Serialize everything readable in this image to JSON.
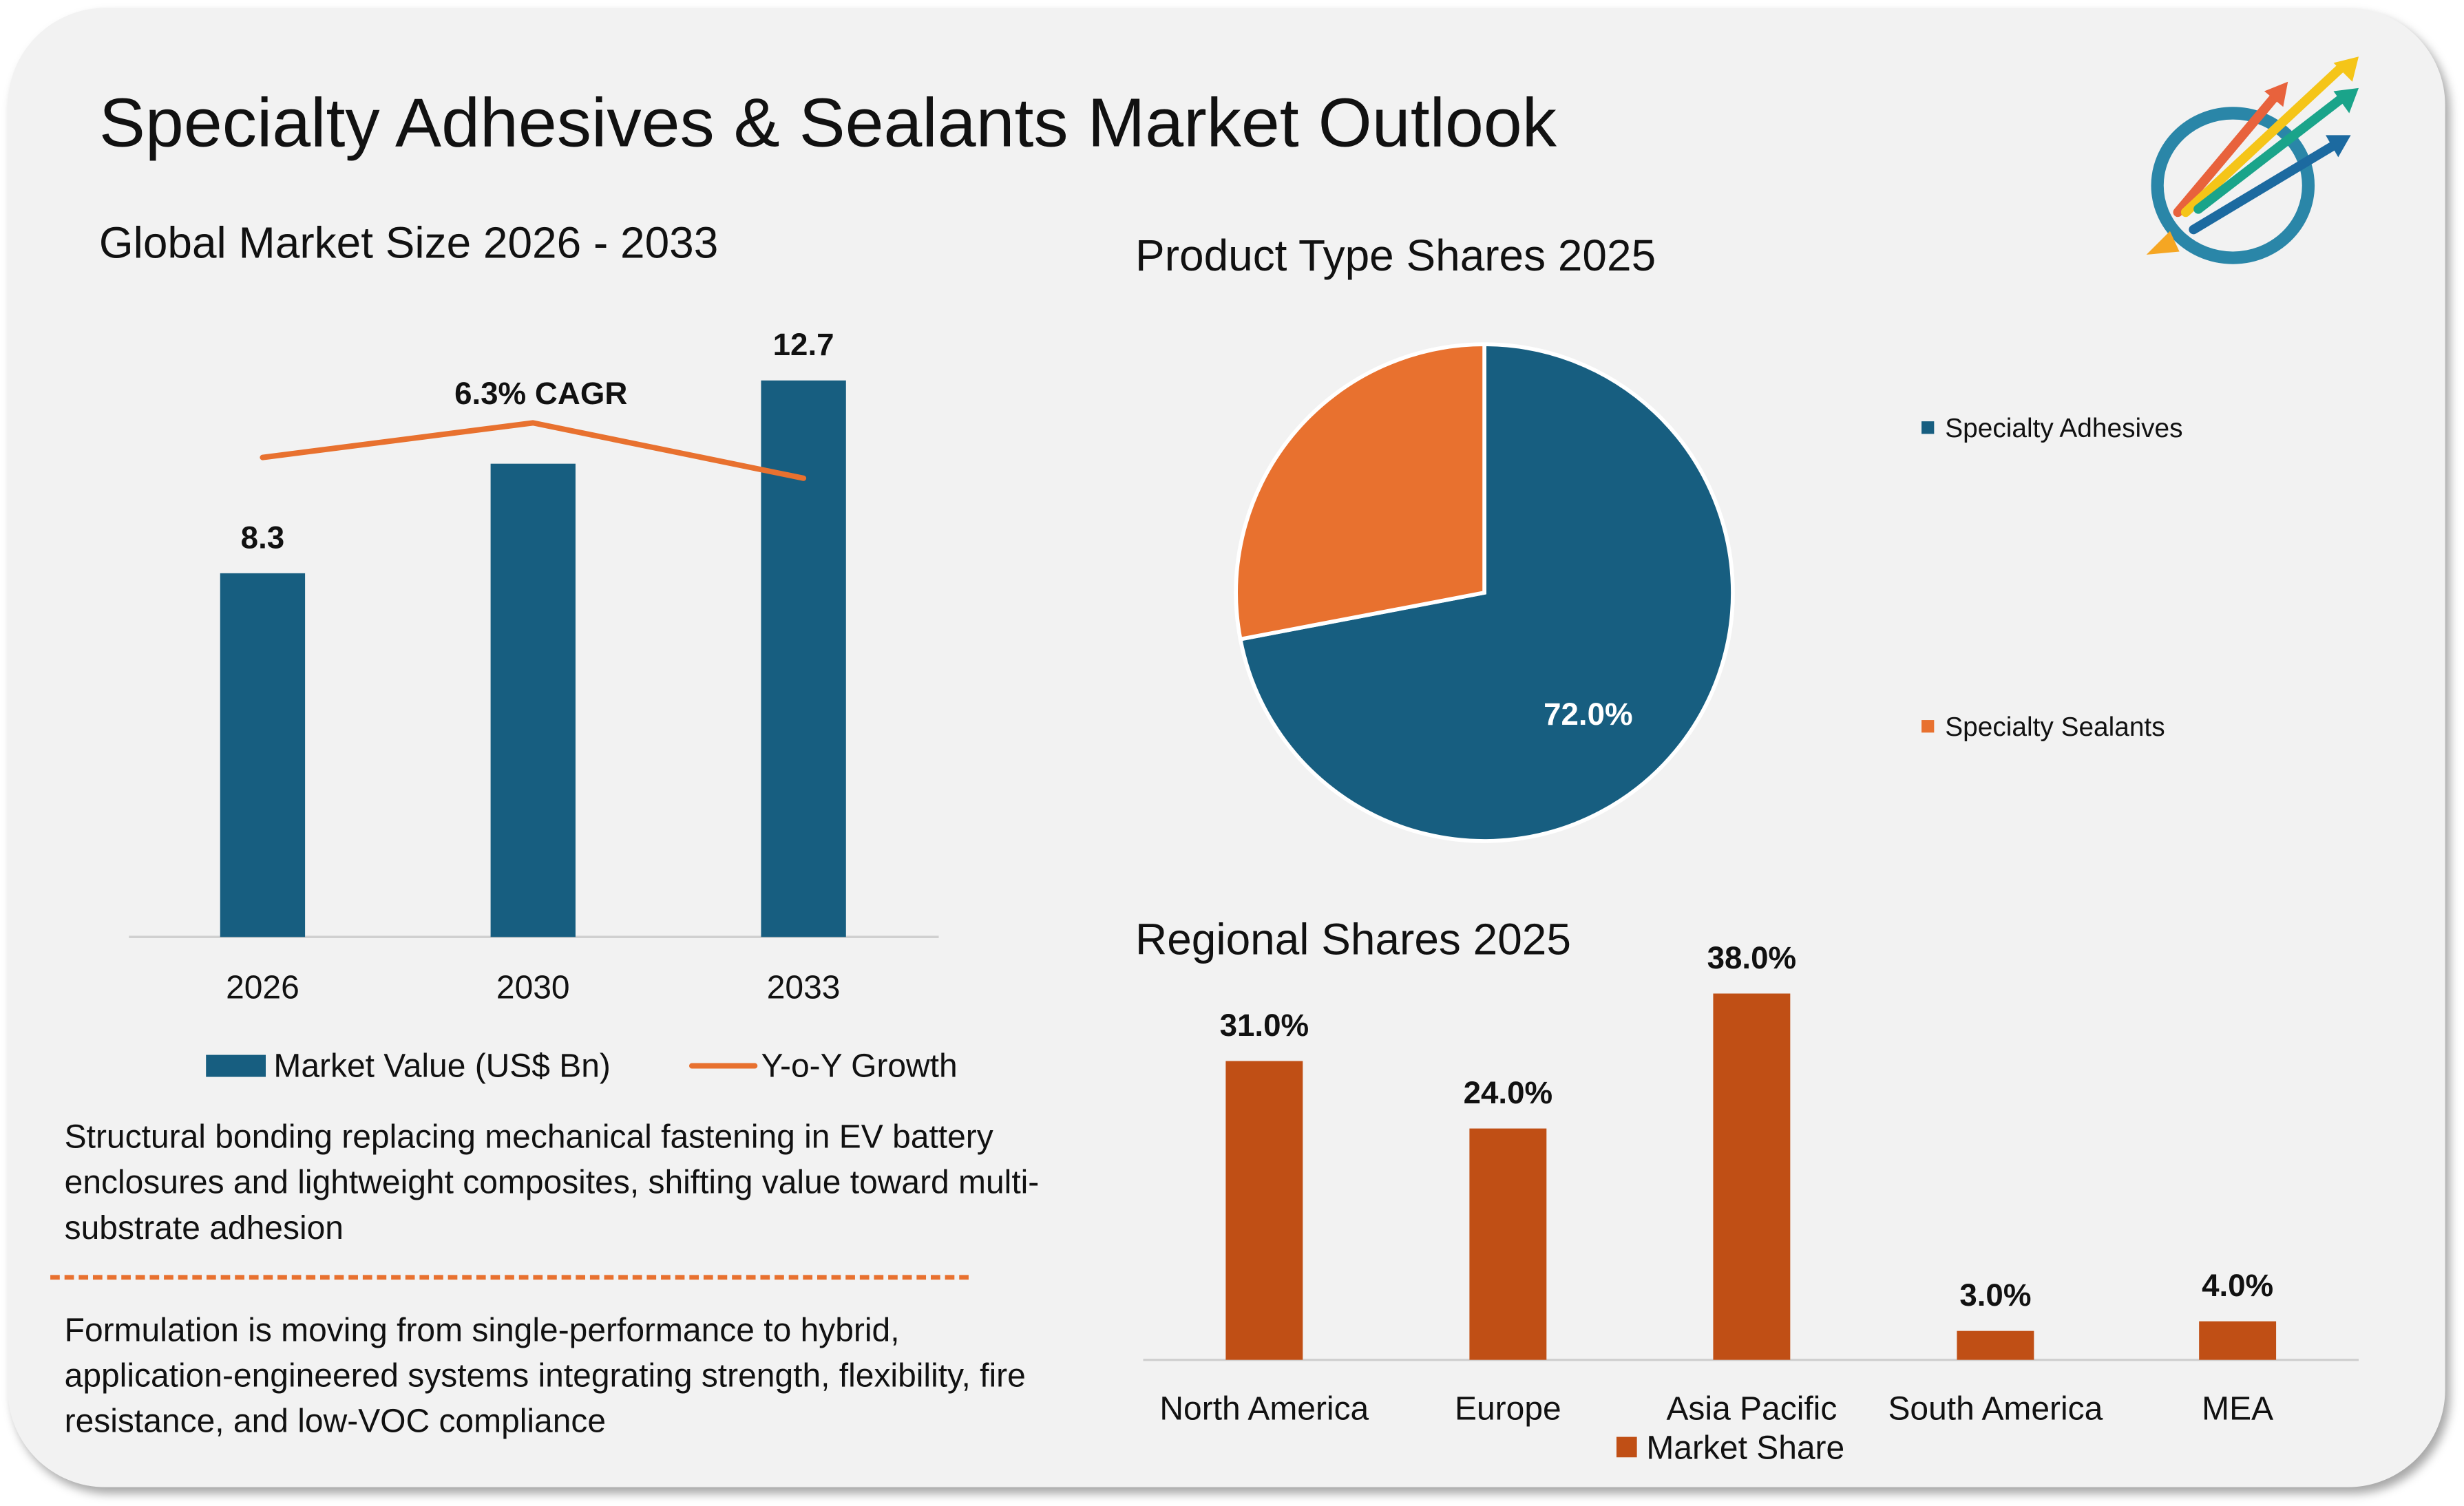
{
  "title": "Specialty Adhesives & Sealants Market Outlook",
  "colors": {
    "market_value": "#175e80",
    "yoy_growth": "#e8712f",
    "adhesives": "#175e80",
    "sealants": "#e8712f",
    "regional": "#c04f15",
    "background": "#f2f2f2"
  },
  "logo": {
    "icon": "rising-arrows-globe-logo"
  },
  "insights": [
    "Structural bonding replacing mechanical fastening in EV battery enclosures and lightweight composites, shifting value toward multi-substrate adhesion",
    "Formulation is moving from single-performance to hybrid, application-engineered systems integrating strength, flexibility, fire resistance, and low-VOC compliance"
  ],
  "chart_data": [
    {
      "type": "bar",
      "title": "Global Market Size 2026 - 2033",
      "categories": [
        "2026",
        "2030",
        "2033"
      ],
      "series": [
        {
          "name": "Market Value (US$ Bn)",
          "type": "bar",
          "values": [
            8.3,
            10.8,
            12.7
          ],
          "data_labels": [
            "8.3",
            "",
            "12.7"
          ]
        },
        {
          "name": "Y-o-Y Growth",
          "type": "line",
          "values": [
            6.2,
            6.7,
            5.9
          ]
        }
      ],
      "annotation": "6.3% CAGR",
      "ylim": [
        0,
        12.7
      ],
      "grid": false,
      "legend": "bottom"
    },
    {
      "type": "pie",
      "title": "Product Type Shares 2025",
      "slices": [
        {
          "label": "Specialty Adhesives",
          "value": 72.0,
          "data_label": "72.0%"
        },
        {
          "label": "Specialty Sealants",
          "value": 28.0
        }
      ],
      "legend": "right"
    },
    {
      "type": "bar",
      "title": "Regional Shares 2025",
      "categories": [
        "North America",
        "Europe",
        "Asia Pacific",
        "South America",
        "MEA"
      ],
      "series": [
        {
          "name": "Market Share",
          "values": [
            31.0,
            24.0,
            38.0,
            3.0,
            4.0
          ],
          "data_labels": [
            "31.0%",
            "24.0%",
            "38.0%",
            "3.0%",
            "4.0%"
          ]
        }
      ],
      "ylim": [
        0,
        38
      ],
      "grid": false,
      "legend": "bottom"
    }
  ]
}
